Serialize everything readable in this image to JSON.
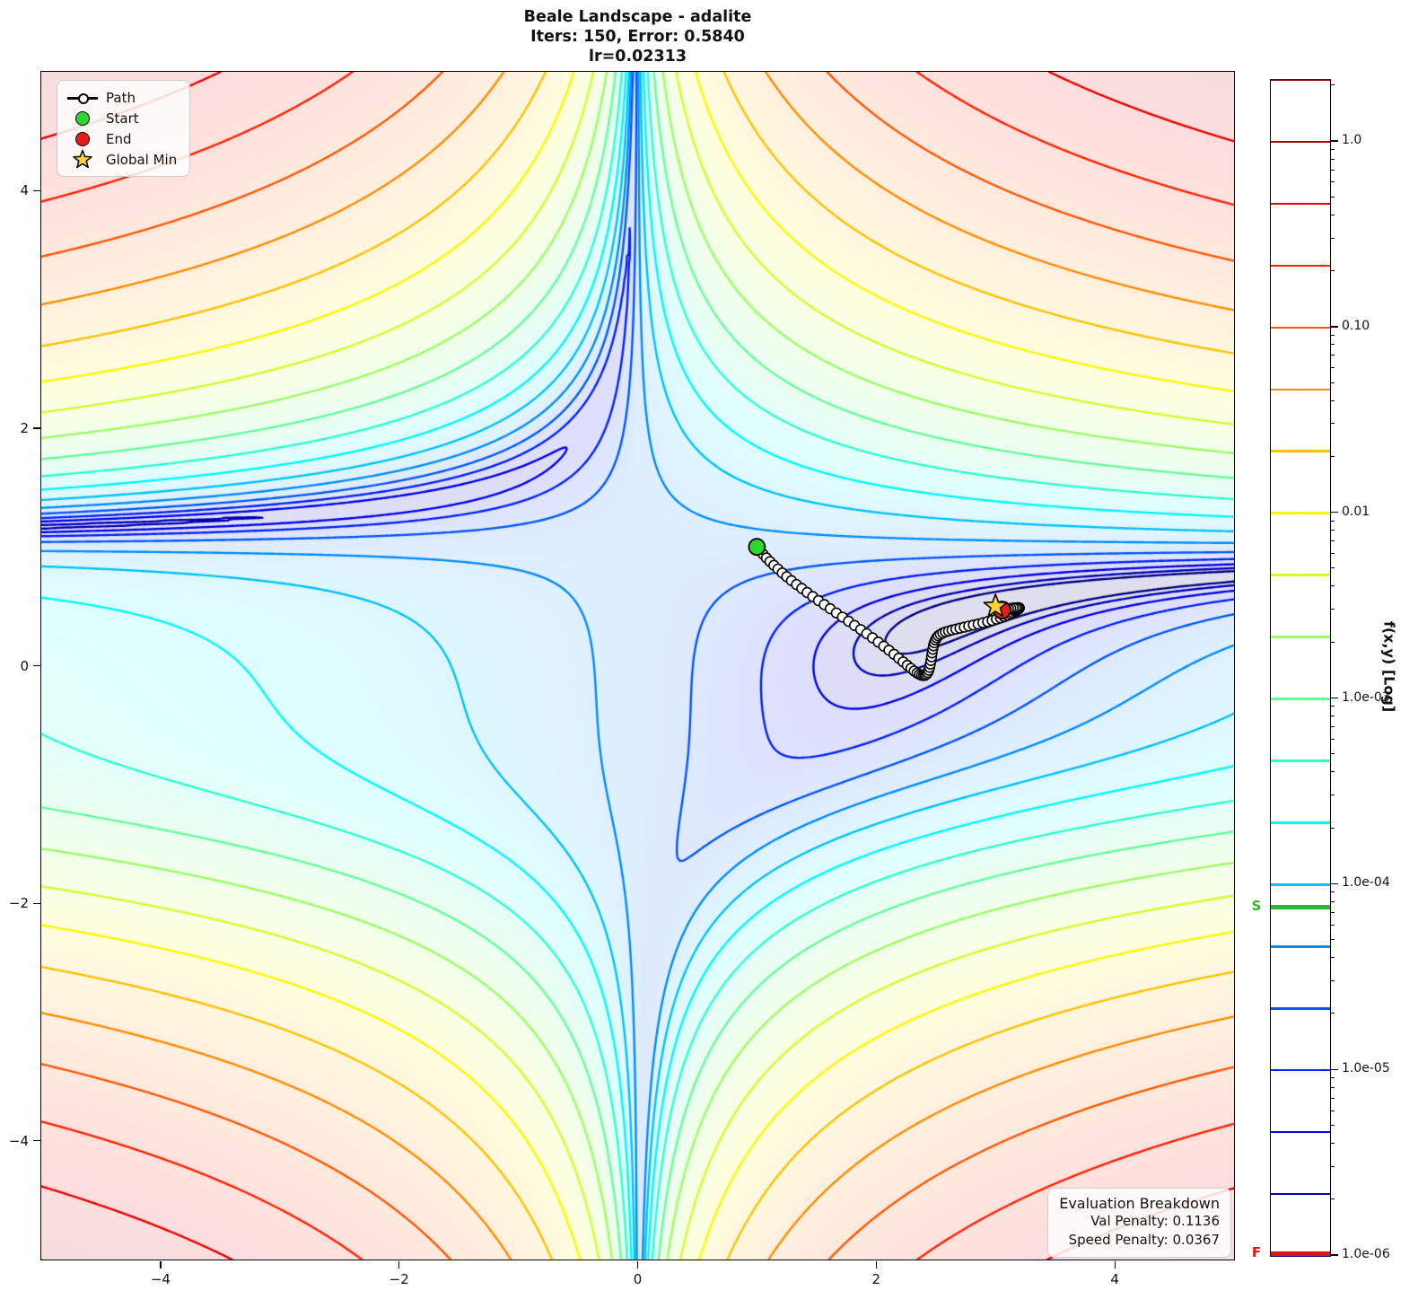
{
  "title": {
    "line1": "Beale Landscape - adalite",
    "line2": "Iters: 150, Error: 0.5840",
    "line3": "lr=0.02313",
    "iterations": 150,
    "error": 0.584,
    "learning_rate": 0.02313,
    "optimizer": "adalite"
  },
  "legend": {
    "items": [
      {
        "label": "Path",
        "marker": "path-line",
        "color": "#000000"
      },
      {
        "label": "Start",
        "marker": "circle",
        "color": "#2ed52e"
      },
      {
        "label": "End",
        "marker": "circle",
        "color": "#e51c1c"
      },
      {
        "label": "Global Min",
        "marker": "star",
        "color": "#ffd22e"
      }
    ]
  },
  "eval_box": {
    "title": "Evaluation Breakdown",
    "val_penalty_label": "Val Penalty: 0.1136",
    "speed_penalty_label": "Speed Penalty: 0.0367",
    "val_penalty": 0.1136,
    "speed_penalty": 0.0367
  },
  "axes": {
    "x_range": [
      -5,
      5
    ],
    "y_range": [
      -5,
      5
    ],
    "x_tick_values": [
      -4,
      -2,
      0,
      2,
      4
    ],
    "x_tick_labels": [
      "−4",
      "−2",
      "0",
      "2",
      "4"
    ],
    "y_tick_values": [
      -4,
      -2,
      0,
      2,
      4
    ],
    "y_tick_labels": [
      "−4",
      "−2",
      "0",
      "2",
      "4"
    ]
  },
  "colorbar": {
    "label": "f(x,y) [Log]",
    "scale": "log10",
    "range_log10": [
      -6,
      0.3333
    ],
    "tick_values_log10": [
      0,
      -1,
      -2,
      -3,
      -4,
      -5,
      -6
    ],
    "tick_labels": [
      "1.0",
      "0.10",
      "0.01",
      "1.0e-03",
      "1.0e-04",
      "1.0e-05",
      "1.0e-06"
    ],
    "start_marker": {
      "label": "S",
      "color": "#2db92d",
      "value_log10": -4.12
    },
    "final_marker": {
      "label": "F",
      "color": "#dd1515",
      "value_log10": -6
    }
  },
  "chart_data": {
    "type": "contour",
    "function_name": "beale",
    "formula": "f(x,y) = (1.5 - x + x*y)^2 + (2.25 - x + x*y^2)^2 + (2.625 - x + x*y^3)^2, shown as log10(f/max f)",
    "x_range": [
      -5,
      5
    ],
    "y_range": [
      -5,
      5
    ],
    "levels_log10_min": -6,
    "levels_log10_max": 0.3333,
    "levels_step_log10": 0.3333,
    "levels_count": 20,
    "colormap": "jet",
    "background_whiten_alpha": 0.13,
    "contour_line_width": 2.4,
    "start": [
      1.0,
      1.0
    ],
    "end": [
      3.055,
      0.468
    ],
    "global_min": [
      3.0,
      0.5
    ],
    "path": [
      [
        1.0,
        1.0
      ],
      [
        1.025,
        0.969
      ],
      [
        1.052,
        0.938
      ],
      [
        1.08,
        0.907
      ],
      [
        1.11,
        0.876
      ],
      [
        1.142,
        0.845
      ],
      [
        1.176,
        0.813
      ],
      [
        1.212,
        0.781
      ],
      [
        1.25,
        0.749
      ],
      [
        1.29,
        0.716
      ],
      [
        1.332,
        0.683
      ],
      [
        1.376,
        0.65
      ],
      [
        1.421,
        0.616
      ],
      [
        1.468,
        0.582
      ],
      [
        1.516,
        0.548
      ],
      [
        1.565,
        0.514
      ],
      [
        1.615,
        0.479
      ],
      [
        1.666,
        0.444
      ],
      [
        1.717,
        0.409
      ],
      [
        1.768,
        0.374
      ],
      [
        1.819,
        0.339
      ],
      [
        1.87,
        0.304
      ],
      [
        1.92,
        0.269
      ],
      [
        1.969,
        0.234
      ],
      [
        2.017,
        0.199
      ],
      [
        2.063,
        0.164
      ],
      [
        2.107,
        0.13
      ],
      [
        2.149,
        0.096
      ],
      [
        2.189,
        0.063
      ],
      [
        2.226,
        0.032
      ],
      [
        2.26,
        0.003
      ],
      [
        2.291,
        -0.023
      ],
      [
        2.318,
        -0.045
      ],
      [
        2.342,
        -0.062
      ],
      [
        2.363,
        -0.074
      ],
      [
        2.381,
        -0.081
      ],
      [
        2.397,
        -0.083
      ],
      [
        2.411,
        -0.08
      ],
      [
        2.423,
        -0.071
      ],
      [
        2.433,
        -0.057
      ],
      [
        2.441,
        -0.038
      ],
      [
        2.448,
        -0.014
      ],
      [
        2.454,
        0.013
      ],
      [
        2.459,
        0.043
      ],
      [
        2.464,
        0.075
      ],
      [
        2.469,
        0.107
      ],
      [
        2.474,
        0.138
      ],
      [
        2.48,
        0.167
      ],
      [
        2.487,
        0.193
      ],
      [
        2.496,
        0.216
      ],
      [
        2.507,
        0.235
      ],
      [
        2.521,
        0.251
      ],
      [
        2.538,
        0.264
      ],
      [
        2.558,
        0.275
      ],
      [
        2.581,
        0.284
      ],
      [
        2.607,
        0.292
      ],
      [
        2.636,
        0.3
      ],
      [
        2.668,
        0.308
      ],
      [
        2.702,
        0.316
      ],
      [
        2.738,
        0.324
      ],
      [
        2.776,
        0.333
      ],
      [
        2.815,
        0.342
      ],
      [
        2.855,
        0.351
      ],
      [
        2.895,
        0.361
      ],
      [
        2.934,
        0.371
      ],
      [
        2.972,
        0.381
      ],
      [
        3.008,
        0.392
      ],
      [
        3.042,
        0.403
      ],
      [
        3.073,
        0.414
      ],
      [
        3.101,
        0.425
      ],
      [
        3.126,
        0.436
      ],
      [
        3.147,
        0.446
      ],
      [
        3.164,
        0.455
      ],
      [
        3.177,
        0.463
      ],
      [
        3.186,
        0.47
      ],
      [
        3.192,
        0.476
      ],
      [
        3.196,
        0.48
      ],
      [
        3.198,
        0.483
      ],
      [
        3.2,
        0.485
      ],
      [
        3.199,
        0.487
      ],
      [
        3.193,
        0.488
      ],
      [
        3.182,
        0.488
      ],
      [
        3.167,
        0.487
      ],
      [
        3.149,
        0.485
      ],
      [
        3.129,
        0.482
      ],
      [
        3.109,
        0.479
      ],
      [
        3.091,
        0.476
      ],
      [
        3.076,
        0.473
      ],
      [
        3.065,
        0.471
      ],
      [
        3.058,
        0.469
      ],
      [
        3.055,
        0.468
      ]
    ]
  }
}
